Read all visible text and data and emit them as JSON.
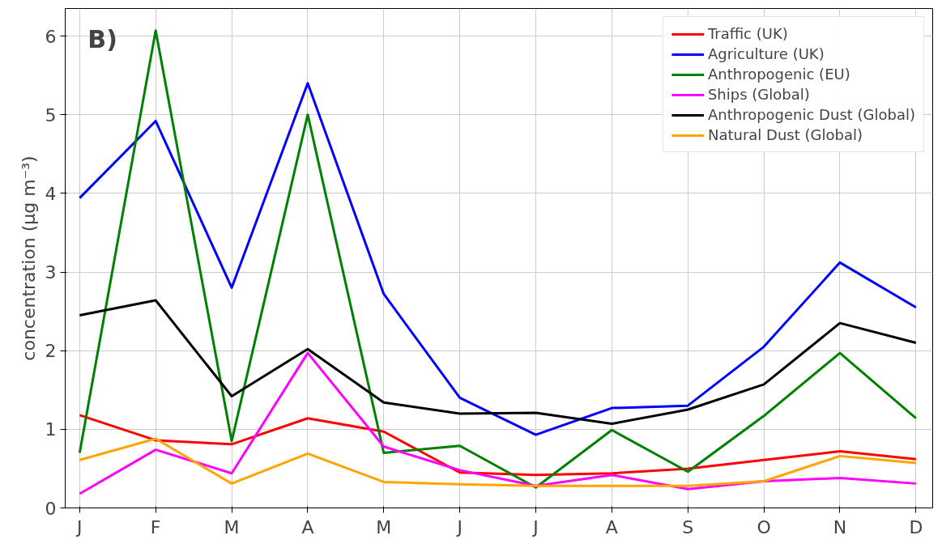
{
  "chart_data": {
    "type": "line",
    "title": "B)",
    "ylabel": "concentration (μg m⁻³)",
    "categories": [
      "J",
      "F",
      "M",
      "A",
      "M",
      "J",
      "J",
      "A",
      "S",
      "O",
      "N",
      "D"
    ],
    "ylim": [
      0,
      6.35
    ],
    "yticks": [
      0,
      1,
      2,
      3,
      4,
      5,
      6
    ],
    "grid": true,
    "legend": "top right",
    "line_style": "solid",
    "series": [
      {
        "name": "Traffic (UK)",
        "color": "#ff0000",
        "values": [
          1.18,
          0.86,
          0.81,
          1.14,
          0.97,
          0.45,
          0.42,
          0.44,
          0.5,
          0.61,
          0.72,
          0.62
        ]
      },
      {
        "name": "Agriculture (UK)",
        "color": "#0000ff",
        "values": [
          3.94,
          4.92,
          2.8,
          5.4,
          2.72,
          1.4,
          0.93,
          1.27,
          1.3,
          2.05,
          3.12,
          2.55
        ]
      },
      {
        "name": "Anthropogenic (EU)",
        "color": "#008000",
        "values": [
          0.7,
          6.07,
          0.85,
          5.0,
          0.7,
          0.79,
          0.26,
          0.99,
          0.46,
          1.17,
          1.97,
          1.14
        ]
      },
      {
        "name": "Ships (Global)",
        "color": "#ff00ff",
        "values": [
          0.18,
          0.74,
          0.44,
          1.97,
          0.78,
          0.48,
          0.28,
          0.42,
          0.24,
          0.34,
          0.38,
          0.31
        ]
      },
      {
        "name": "Anthropogenic Dust (Global)",
        "color": "#000000",
        "values": [
          2.45,
          2.64,
          1.42,
          2.02,
          1.34,
          1.2,
          1.21,
          1.07,
          1.25,
          1.57,
          2.35,
          2.1
        ]
      },
      {
        "name": "Natural Dust (Global)",
        "color": "#ffa500",
        "values": [
          0.61,
          0.88,
          0.31,
          0.69,
          0.33,
          0.3,
          0.28,
          0.28,
          0.28,
          0.34,
          0.66,
          0.57
        ]
      }
    ]
  }
}
